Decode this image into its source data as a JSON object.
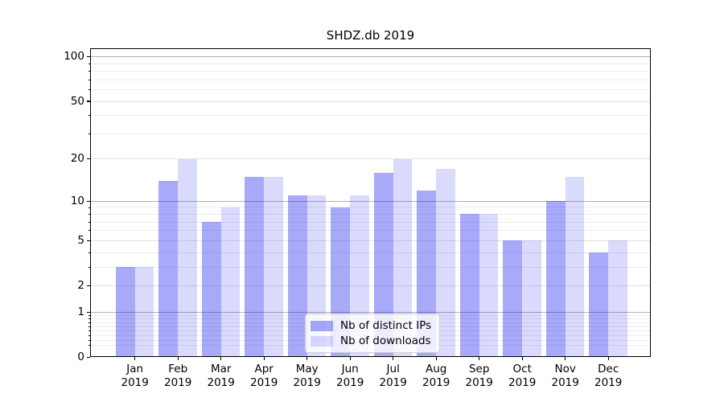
{
  "chart_data": {
    "type": "bar",
    "title": "SHDZ.db 2019",
    "categories": [
      "Jan",
      "Feb",
      "Mar",
      "Apr",
      "May",
      "Jun",
      "Jul",
      "Aug",
      "Sep",
      "Oct",
      "Nov",
      "Dec"
    ],
    "year": "2019",
    "series": [
      {
        "name": "Nb of distinct IPs",
        "color": "rgba(10,10,240,0.35)",
        "values": [
          3,
          14,
          7,
          15,
          11,
          9,
          16,
          12,
          8,
          5,
          10,
          4
        ]
      },
      {
        "name": "Nb of downloads",
        "color": "rgba(10,10,240,0.15)",
        "values": [
          3,
          20,
          9,
          15,
          11,
          11,
          20,
          17,
          8,
          5,
          15,
          5
        ]
      }
    ],
    "y_axis": {
      "scale": "log1p",
      "tick_values": [
        0,
        1,
        2,
        5,
        10,
        20,
        50,
        100
      ],
      "tick_labels": [
        "0",
        "1",
        "2",
        "5",
        "10",
        "20",
        "50",
        "100"
      ],
      "major_grid_values": [
        1,
        10,
        100
      ],
      "mid_grid_values": [
        2,
        5,
        20,
        50
      ],
      "minor_grid_values": [
        0.2,
        0.3,
        0.4,
        0.5,
        0.6,
        0.7,
        0.8,
        0.9,
        3,
        4,
        6,
        7,
        8,
        9,
        30,
        40,
        60,
        70,
        80,
        90
      ],
      "ylim": [
        0,
        113
      ]
    },
    "xlabel": "",
    "ylabel": "",
    "grid": true,
    "legend": {
      "position": "lower center",
      "labels": [
        "Nb of distinct IPs",
        "Nb of downloads"
      ]
    }
  },
  "colors": {
    "bar_distinct_ips": "rgba(10,10,240,0.35)",
    "bar_downloads": "rgba(10,10,240,0.15)",
    "major_grid": "#b2b2b2",
    "minor_grid": "#ededed",
    "spine": "#000000",
    "background": "#ffffff"
  }
}
